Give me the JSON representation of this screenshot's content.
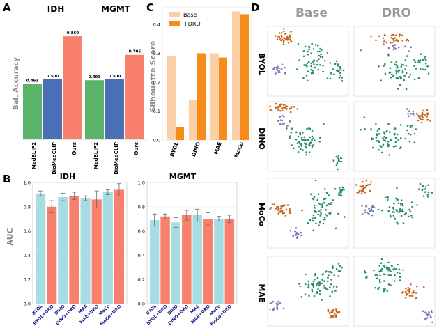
{
  "colors": {
    "green": "#5cb46a",
    "blue": "#4a6fb5",
    "salmon": "#f8806d",
    "lightblue": "#a7dde2",
    "lightorange": "#fbd0a6",
    "orange": "#f88c1b",
    "gray": "#888888",
    "navy": "#1a1a8c",
    "scatter_green": "#2a8c6c",
    "scatter_orange": "#c8641f",
    "scatter_purple": "#7b78b8"
  },
  "panels": {
    "A": "A",
    "B": "B",
    "C": "C",
    "D": "D"
  },
  "chart_data": [
    {
      "panel": "A-IDH",
      "type": "bar",
      "title": "IDH",
      "ylabel": "Bal. Accuracy",
      "categories": [
        "MedBLIP2",
        "BioMedCLIP",
        "Ours"
      ],
      "values": [
        0.463,
        0.5,
        0.86
      ],
      "value_labels": [
        "0.463",
        "0.500",
        "0.860"
      ],
      "ylim": [
        0,
        1.0
      ]
    },
    {
      "panel": "A-MGMT",
      "type": "bar",
      "title": "MGMT",
      "ylabel": "",
      "categories": [
        "MedBLIP2",
        "BioMedCLIP",
        "Ours"
      ],
      "values": [
        0.493,
        0.5,
        0.705
      ],
      "value_labels": [
        "0.493",
        "0.500",
        "0.705"
      ],
      "ylim": [
        0,
        1.0
      ]
    },
    {
      "panel": "B-IDH",
      "type": "bar",
      "title": "IDH",
      "ylabel": "AUC",
      "categories": [
        "BYOL",
        "BYOL+DRO",
        "DINO",
        "DINO+DRO",
        "MAE",
        "MAE+DRO",
        "MoCo",
        "MoCo+DRO"
      ],
      "values": [
        0.91,
        0.8,
        0.88,
        0.89,
        0.87,
        0.86,
        0.92,
        0.94
      ],
      "errors": [
        0.02,
        0.05,
        0.03,
        0.03,
        0.02,
        0.07,
        0.02,
        0.05
      ],
      "yticks": [
        "0.0",
        "0.2",
        "0.4",
        "0.6",
        "0.8",
        "1.0"
      ],
      "ylim": [
        0,
        1.0
      ]
    },
    {
      "panel": "B-MGMT",
      "type": "bar",
      "title": "MGMT",
      "ylabel": "",
      "categories": [
        "BYOL",
        "BYOL+DRO",
        "DINO",
        "DINO+DRO",
        "MAE",
        "MAE+DRO",
        "MoCo",
        "MoCo+DRO"
      ],
      "values": [
        0.69,
        0.72,
        0.67,
        0.73,
        0.73,
        0.7,
        0.7,
        0.7
      ],
      "errors": [
        0.05,
        0.02,
        0.04,
        0.04,
        0.05,
        0.05,
        0.02,
        0.03
      ],
      "yticks": [
        "0.0",
        "0.2",
        "0.4",
        "0.6",
        "0.8",
        "1.0"
      ],
      "ylim": [
        0,
        1.0
      ]
    },
    {
      "panel": "C",
      "type": "bar",
      "title": "",
      "ylabel": "Silhouette Score",
      "categories": [
        "BYOL",
        "DINO",
        "MAE",
        "MoCo"
      ],
      "series": [
        {
          "name": "Base",
          "values": [
            0.29,
            0.14,
            0.3,
            0.445
          ]
        },
        {
          "name": "+DRO",
          "values": [
            0.045,
            0.3,
            0.285,
            0.435
          ]
        }
      ],
      "yticks": [
        "0.0",
        "0.1",
        "0.2",
        "0.3",
        "0.4"
      ],
      "ylim": [
        0,
        0.46
      ]
    }
  ],
  "tsne": {
    "columns": [
      "Base",
      "DRO"
    ],
    "rows": [
      "BYOL",
      "DINO",
      "MoCo",
      "MAE"
    ]
  }
}
